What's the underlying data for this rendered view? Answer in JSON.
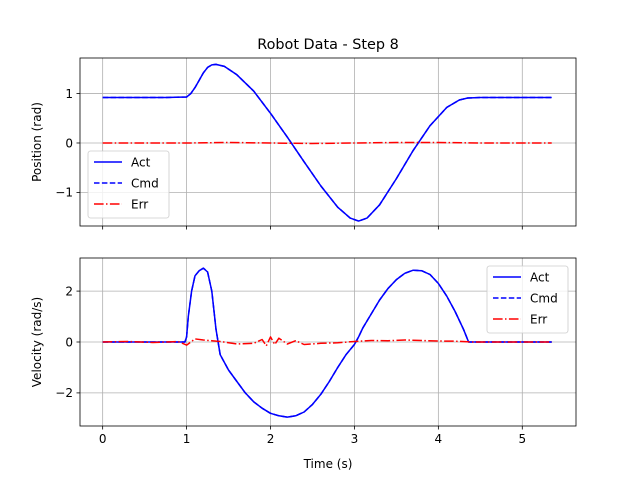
{
  "figure": {
    "title": "Robot Data - Step 8",
    "xlabel": "Time (s)"
  },
  "colors": {
    "act": "#0000ff",
    "cmd": "#0000ff",
    "err": "#ff0000",
    "grid": "#b0b0b0",
    "axis": "#000000"
  },
  "chart_data": [
    {
      "type": "line",
      "title": "Robot Data - Step 8",
      "xlabel": "",
      "ylabel": "Position (rad)",
      "xlim": [
        -0.27,
        5.64
      ],
      "ylim": [
        -1.68,
        1.72
      ],
      "xticks": [
        0,
        1,
        2,
        3,
        4,
        5
      ],
      "xtick_labels_visible": false,
      "yticks": [
        -1,
        0,
        1
      ],
      "ytick_labels": [
        "−1",
        "0",
        "1"
      ],
      "grid": true,
      "legend": {
        "placement": "lower-left",
        "entries": [
          "Act",
          "Cmd",
          "Err"
        ]
      },
      "series": [
        {
          "name": "Act",
          "style": "solid",
          "x": [
            0,
            0.25,
            0.5,
            0.75,
            1.0,
            1.05,
            1.1,
            1.15,
            1.2,
            1.25,
            1.3,
            1.35,
            1.45,
            1.6,
            1.8,
            2.0,
            2.2,
            2.4,
            2.6,
            2.8,
            2.95,
            3.05,
            3.15,
            3.3,
            3.5,
            3.7,
            3.9,
            4.1,
            4.25,
            4.35,
            4.5,
            4.75,
            5.0,
            5.35
          ],
          "y": [
            0.92,
            0.92,
            0.92,
            0.92,
            0.93,
            1.0,
            1.12,
            1.27,
            1.42,
            1.53,
            1.58,
            1.59,
            1.55,
            1.38,
            1.05,
            0.6,
            0.12,
            -0.38,
            -0.87,
            -1.3,
            -1.52,
            -1.58,
            -1.52,
            -1.25,
            -0.72,
            -0.15,
            0.35,
            0.72,
            0.87,
            0.91,
            0.92,
            0.92,
            0.92,
            0.92
          ]
        },
        {
          "name": "Cmd",
          "style": "dashed",
          "x": [
            0,
            0.25,
            0.5,
            0.75,
            1.0,
            1.05,
            1.1,
            1.15,
            1.2,
            1.25,
            1.3,
            1.35,
            1.45,
            1.6,
            1.8,
            2.0,
            2.2,
            2.4,
            2.6,
            2.8,
            2.95,
            3.05,
            3.15,
            3.3,
            3.5,
            3.7,
            3.9,
            4.1,
            4.25,
            4.35,
            4.5,
            4.75,
            5.0,
            5.35
          ],
          "y": [
            0.92,
            0.92,
            0.92,
            0.92,
            0.93,
            1.0,
            1.12,
            1.27,
            1.42,
            1.53,
            1.58,
            1.59,
            1.55,
            1.38,
            1.05,
            0.6,
            0.12,
            -0.38,
            -0.87,
            -1.3,
            -1.52,
            -1.58,
            -1.52,
            -1.25,
            -0.72,
            -0.15,
            0.35,
            0.72,
            0.87,
            0.91,
            0.92,
            0.92,
            0.92,
            0.92
          ]
        },
        {
          "name": "Err",
          "style": "dashdot",
          "x": [
            0,
            1.0,
            1.5,
            2.0,
            2.5,
            3.0,
            3.5,
            4.0,
            4.5,
            5.0,
            5.35
          ],
          "y": [
            0.0,
            0.0,
            0.01,
            0.0,
            -0.01,
            0.0,
            0.01,
            0.01,
            0.0,
            0.0,
            0.0
          ]
        }
      ]
    },
    {
      "type": "line",
      "title": "",
      "xlabel": "Time (s)",
      "ylabel": "Velocity (rad/s)",
      "xlim": [
        -0.27,
        5.64
      ],
      "ylim": [
        -3.3,
        3.3
      ],
      "xticks": [
        0,
        1,
        2,
        3,
        4,
        5
      ],
      "xtick_labels": [
        "0",
        "1",
        "2",
        "3",
        "4",
        "5"
      ],
      "yticks": [
        -2,
        0,
        2
      ],
      "ytick_labels": [
        "−2",
        "0",
        "2"
      ],
      "grid": true,
      "legend": {
        "placement": "upper-right",
        "entries": [
          "Act",
          "Cmd",
          "Err"
        ]
      },
      "series": [
        {
          "name": "Act",
          "style": "solid",
          "x": [
            0,
            0.5,
            0.98,
            1.0,
            1.02,
            1.06,
            1.1,
            1.15,
            1.2,
            1.25,
            1.3,
            1.35,
            1.4,
            1.5,
            1.6,
            1.7,
            1.8,
            1.9,
            2.0,
            2.1,
            2.2,
            2.3,
            2.4,
            2.5,
            2.6,
            2.7,
            2.8,
            2.9,
            3.0,
            3.05,
            3.1,
            3.2,
            3.3,
            3.4,
            3.5,
            3.6,
            3.7,
            3.8,
            3.9,
            4.0,
            4.1,
            4.2,
            4.3,
            4.36,
            4.5,
            5.0,
            5.35
          ],
          "y": [
            0.0,
            0.0,
            0.0,
            0.2,
            1.0,
            2.0,
            2.6,
            2.8,
            2.9,
            2.75,
            2.0,
            0.5,
            -0.5,
            -1.1,
            -1.55,
            -2.0,
            -2.35,
            -2.6,
            -2.8,
            -2.9,
            -2.95,
            -2.9,
            -2.75,
            -2.45,
            -2.05,
            -1.55,
            -1.0,
            -0.5,
            -0.1,
            0.2,
            0.55,
            1.1,
            1.65,
            2.1,
            2.45,
            2.7,
            2.82,
            2.8,
            2.65,
            2.3,
            1.8,
            1.2,
            0.5,
            0.0,
            0.0,
            0.0,
            0.0
          ]
        },
        {
          "name": "Cmd",
          "style": "dashed",
          "x": [
            0,
            0.5,
            0.98,
            1.0,
            1.02,
            1.06,
            1.1,
            1.15,
            1.2,
            1.25,
            1.3,
            1.35,
            1.4,
            1.5,
            1.6,
            1.7,
            1.8,
            1.9,
            2.0,
            2.1,
            2.2,
            2.3,
            2.4,
            2.5,
            2.6,
            2.7,
            2.8,
            2.9,
            3.0,
            3.05,
            3.1,
            3.2,
            3.3,
            3.4,
            3.5,
            3.6,
            3.7,
            3.8,
            3.9,
            4.0,
            4.1,
            4.2,
            4.3,
            4.36,
            4.5,
            5.0,
            5.35
          ],
          "y": [
            0.0,
            0.0,
            0.0,
            0.2,
            1.0,
            2.0,
            2.6,
            2.8,
            2.9,
            2.75,
            2.0,
            0.5,
            -0.5,
            -1.1,
            -1.55,
            -2.0,
            -2.35,
            -2.6,
            -2.8,
            -2.9,
            -2.95,
            -2.9,
            -2.75,
            -2.45,
            -2.05,
            -1.55,
            -1.0,
            -0.5,
            -0.1,
            0.2,
            0.55,
            1.1,
            1.65,
            2.1,
            2.45,
            2.7,
            2.82,
            2.8,
            2.65,
            2.3,
            1.8,
            1.2,
            0.5,
            0.0,
            0.0,
            0.0,
            0.0
          ]
        },
        {
          "name": "Err",
          "style": "dashdot",
          "x": [
            0,
            0.3,
            0.6,
            0.9,
            1.0,
            1.1,
            1.2,
            1.3,
            1.4,
            1.6,
            1.8,
            1.9,
            1.95,
            2.0,
            2.05,
            2.1,
            2.2,
            2.3,
            2.4,
            2.6,
            2.8,
            3.0,
            3.2,
            3.4,
            3.6,
            3.8,
            4.0,
            4.2,
            4.4,
            4.7,
            5.0,
            5.35
          ],
          "y": [
            0.0,
            0.02,
            -0.02,
            0.02,
            -0.12,
            0.12,
            0.08,
            0.05,
            0.02,
            -0.08,
            -0.05,
            0.1,
            -0.15,
            0.2,
            -0.1,
            0.15,
            -0.08,
            0.05,
            -0.1,
            -0.05,
            -0.03,
            0.02,
            0.06,
            0.05,
            0.08,
            0.06,
            0.04,
            0.03,
            0.0,
            0.0,
            0.0,
            0.0
          ]
        }
      ]
    }
  ]
}
